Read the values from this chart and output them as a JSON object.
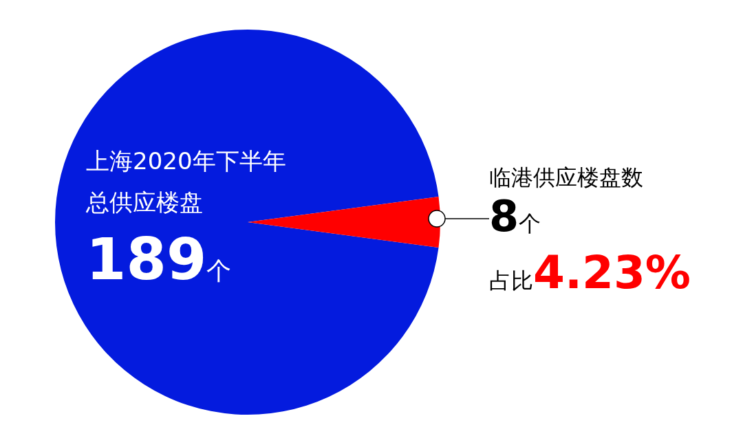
{
  "chart_data": {
    "type": "pie",
    "categories": [
      "上海2020年下半年总供应楼盘",
      "临港供应楼盘数"
    ],
    "values": [
      95.77,
      4.23
    ],
    "colors": [
      "#041bde",
      "#ff0000"
    ],
    "annotations": [
      "189个",
      "8个",
      "占比4.23%"
    ]
  }
}
